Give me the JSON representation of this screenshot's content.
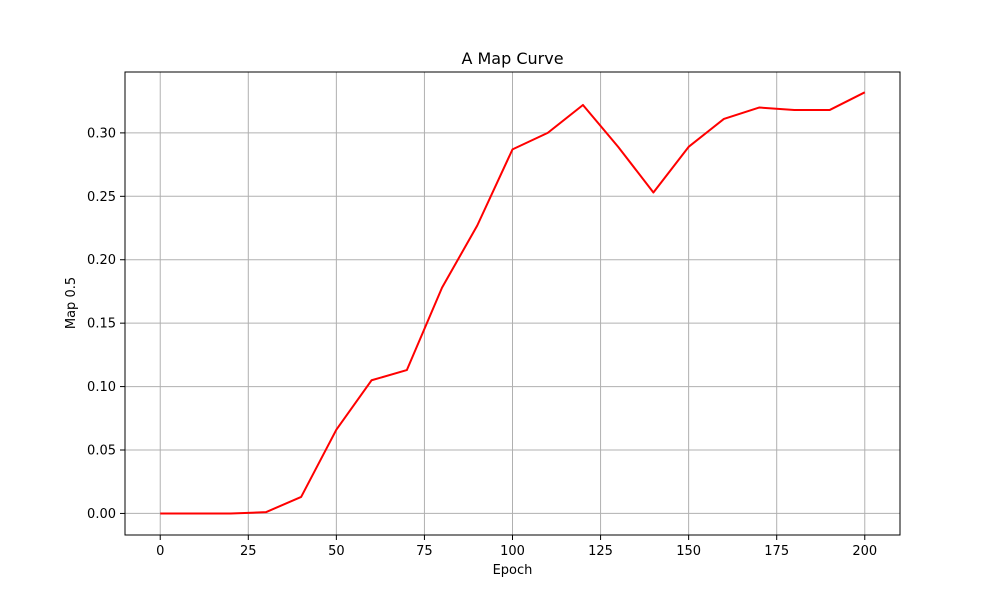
{
  "chart_data": {
    "type": "line",
    "title": "A Map Curve",
    "xlabel": "Epoch",
    "ylabel": "Map 0.5",
    "xlim": [
      -10,
      210
    ],
    "ylim": [
      -0.017,
      0.348
    ],
    "xticks": [
      0,
      25,
      50,
      75,
      100,
      125,
      150,
      175,
      200
    ],
    "yticks": [
      0.0,
      0.05,
      0.1,
      0.15,
      0.2,
      0.25,
      0.3
    ],
    "ytick_labels": [
      "0.00",
      "0.05",
      "0.10",
      "0.15",
      "0.20",
      "0.25",
      "0.30"
    ],
    "grid": true,
    "series": [
      {
        "color": "#ff0000",
        "x": [
          0,
          10,
          20,
          30,
          40,
          50,
          60,
          70,
          80,
          90,
          100,
          110,
          120,
          130,
          140,
          150,
          160,
          170,
          180,
          190,
          200
        ],
        "y": [
          0.0,
          0.0,
          0.0,
          0.001,
          0.013,
          0.066,
          0.105,
          0.113,
          0.178,
          0.227,
          0.287,
          0.3,
          0.322,
          0.289,
          0.253,
          0.289,
          0.311,
          0.32,
          0.318,
          0.318,
          0.332
        ]
      }
    ]
  }
}
